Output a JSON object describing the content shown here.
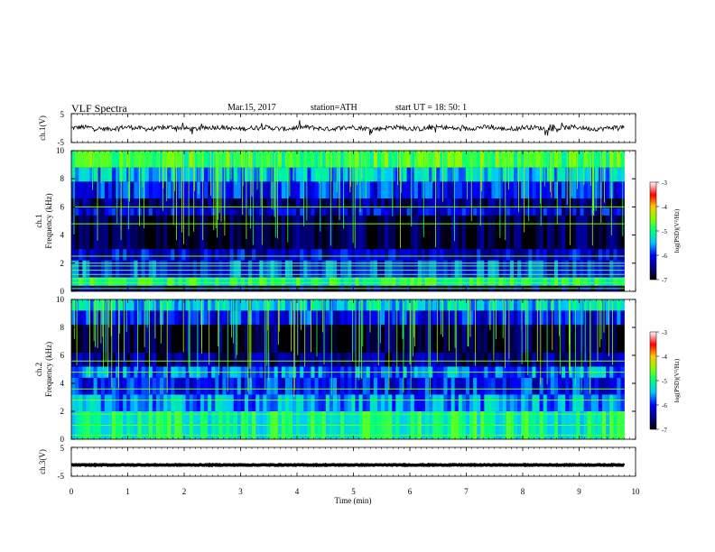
{
  "header": {
    "title": "VLF  Spectra",
    "date": "Mar.15, 2017",
    "station": "station=ATH",
    "start": "start  UT  =    18: 50: 1"
  },
  "chart_data": [
    {
      "type": "line",
      "panel": "ch1-waveform",
      "ylabel": "ch.1(V)",
      "ylim": [
        -5,
        5
      ],
      "yticks": [
        "5",
        "-5"
      ],
      "xlim": [
        0,
        10
      ],
      "note_series": "noisy trace around 0 V spanning 0 to ~9.8 min"
    },
    {
      "type": "heatmap",
      "panel": "ch1-spectrogram",
      "ylabel": "ch.1\nFrequency (kHz)",
      "ylim": [
        0,
        10
      ],
      "yticks": [
        "0",
        "2",
        "4",
        "6",
        "8",
        "10"
      ],
      "xlim": [
        0,
        10
      ],
      "colorbar": {
        "label": "log(PSD)(V²/Hz)",
        "ticks": [
          "-3",
          "-4",
          "-5",
          "-6",
          "-7"
        ],
        "range": [
          -7,
          -3
        ]
      },
      "bands": [
        {
          "from": 0.0,
          "to": 0.4,
          "level": -6.6
        },
        {
          "from": 0.4,
          "to": 1.0,
          "level": -5.0
        },
        {
          "from": 1.0,
          "to": 2.2,
          "level": -5.9
        },
        {
          "from": 2.2,
          "to": 3.0,
          "level": -6.2
        },
        {
          "from": 3.0,
          "to": 5.4,
          "level": -6.8
        },
        {
          "from": 5.4,
          "to": 5.9,
          "level": -6.2
        },
        {
          "from": 5.9,
          "to": 6.6,
          "level": -6.6
        },
        {
          "from": 6.6,
          "to": 7.8,
          "level": -6.0
        },
        {
          "from": 7.8,
          "to": 8.8,
          "level": -5.5
        },
        {
          "from": 8.8,
          "to": 10.0,
          "level": -4.8
        }
      ],
      "lines_khz": [
        0.2,
        0.6,
        0.9,
        1.2,
        1.5,
        1.8,
        2.0,
        2.5,
        4.8,
        6.0
      ]
    },
    {
      "type": "heatmap",
      "panel": "ch2-spectrogram",
      "ylabel": "ch.2\nFrequency (kHz)",
      "ylim": [
        0,
        10
      ],
      "yticks": [
        "0",
        "2",
        "4",
        "6",
        "8",
        "10"
      ],
      "xlim": [
        0,
        10
      ],
      "colorbar": {
        "label": "log(PSD)(V²/Hz)",
        "ticks": [
          "-3",
          "-4",
          "-5",
          "-6",
          "-7"
        ],
        "range": [
          -7,
          -3
        ]
      },
      "bands": [
        {
          "from": 0.0,
          "to": 2.0,
          "level": -5.1
        },
        {
          "from": 2.0,
          "to": 3.2,
          "level": -5.6
        },
        {
          "from": 3.2,
          "to": 4.4,
          "level": -6.0
        },
        {
          "from": 4.4,
          "to": 5.2,
          "level": -5.7
        },
        {
          "from": 5.2,
          "to": 6.2,
          "level": -6.5
        },
        {
          "from": 6.2,
          "to": 8.2,
          "level": -6.8
        },
        {
          "from": 8.2,
          "to": 9.2,
          "level": -6.0
        },
        {
          "from": 9.2,
          "to": 10.0,
          "level": -5.4
        }
      ],
      "lines_khz": [
        0.3,
        1.0,
        1.8,
        2.8,
        3.6,
        4.8,
        5.6
      ]
    },
    {
      "type": "line",
      "panel": "ch3-waveform",
      "ylabel": "ch.3(V)",
      "ylim": [
        -5,
        5
      ],
      "yticks": [
        "5",
        "-5"
      ],
      "xlim": [
        0,
        10
      ],
      "note_series": "flat thick trace near -1 V spanning 0 to ~9.8 min"
    }
  ],
  "xaxis": {
    "label": "Time  (min)",
    "ticks": [
      "0",
      "1",
      "2",
      "3",
      "4",
      "5",
      "6",
      "7",
      "8",
      "9",
      "10"
    ],
    "data_end_min": 9.8
  }
}
